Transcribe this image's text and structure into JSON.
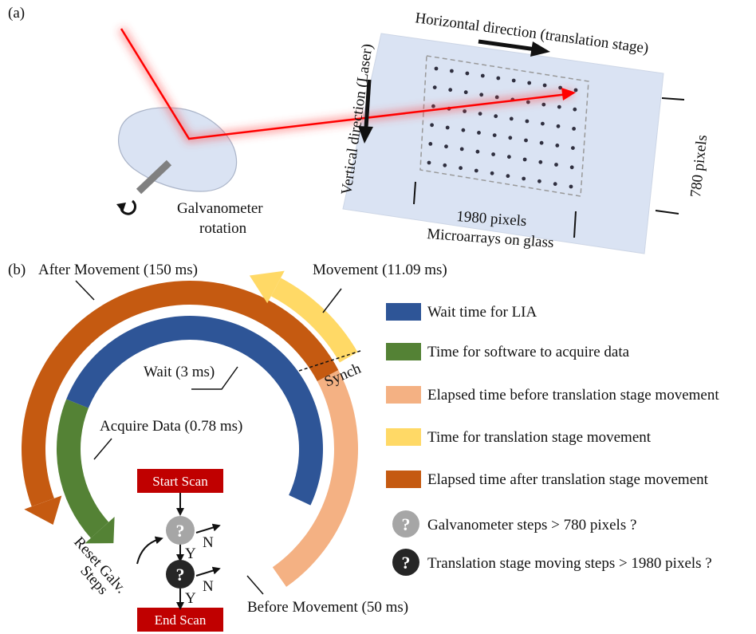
{
  "panel_a": {
    "label": "(a)",
    "horizontal_label": "Horizontal direction (translation stage)",
    "vertical_label": "Vertical direction (Laser)",
    "galvo_label_1": "Galvanometer",
    "galvo_label_2": "rotation",
    "width_label": "1980 pixels",
    "glass_label": "Microarrays on glass",
    "height_label": "780 pixels"
  },
  "panel_b": {
    "label": "(b)",
    "after_movement": "After Movement (150 ms)",
    "movement": "Movement (11.09 ms)",
    "wait": "Wait (3 ms)",
    "synch": "Synch",
    "acquire": "Acquire Data (0.78 ms)",
    "before_movement": "Before Movement (50 ms)",
    "reset_1": "Reset Galv.",
    "reset_2": "Steps",
    "start_scan": "Start Scan",
    "end_scan": "End Scan",
    "yes": "Y",
    "no": "N",
    "question_glyph": "?"
  },
  "colors": {
    "wait": "#2e5597",
    "acquire": "#548235",
    "before": "#f4b183",
    "movement": "#ffd966",
    "after": "#c55a11",
    "box": "#c00000",
    "galvo_q": "#a6a6a6",
    "stage_q": "#262626",
    "laser": "#ff0000",
    "glass": "#dae3f3"
  },
  "legend": [
    {
      "text": "Wait time for LIA",
      "color": "#2e5597"
    },
    {
      "text": "Time for software to acquire data",
      "color": "#548235"
    },
    {
      "text": "Elapsed time before translation stage movement",
      "color": "#f4b183"
    },
    {
      "text": "Time for translation stage movement",
      "color": "#ffd966"
    },
    {
      "text": "Elapsed time after translation stage movement",
      "color": "#c55a11"
    }
  ],
  "legend_questions": [
    {
      "text": "Galvanometer steps > 780 pixels ?",
      "color": "#a6a6a6"
    },
    {
      "text": "Translation stage moving steps > 1980 pixels ?",
      "color": "#262626"
    }
  ]
}
